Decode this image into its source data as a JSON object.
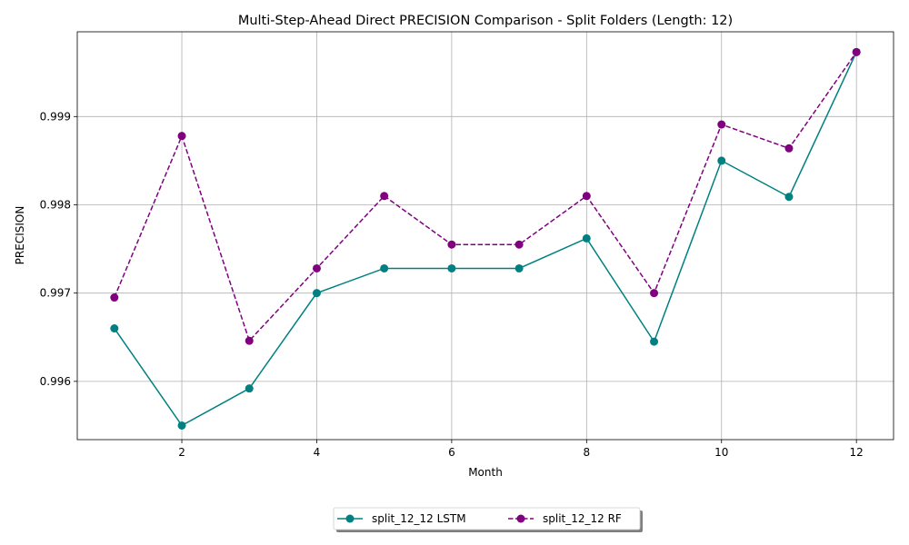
{
  "chart_data": {
    "type": "line",
    "title": "Multi-Step-Ahead Direct PRECISION Comparison - Split Folders (Length: 12)",
    "xlabel": "Month",
    "ylabel": "PRECISION",
    "xlim": [
      0.45,
      12.55
    ],
    "ylim": [
      0.99534,
      0.99996
    ],
    "xticks": [
      2,
      4,
      6,
      8,
      10,
      12
    ],
    "yticks": [
      0.996,
      0.997,
      0.998,
      0.999
    ],
    "grid": true,
    "legend_position": "bottom-center",
    "x": [
      1,
      2,
      3,
      4,
      5,
      6,
      7,
      8,
      9,
      10,
      11,
      12
    ],
    "series": [
      {
        "name": "split_12_12 LSTM",
        "color": "#008080",
        "line_style": "solid",
        "marker": "circle",
        "values": [
          0.9966,
          0.9955,
          0.99592,
          0.997,
          0.99728,
          0.99728,
          0.99728,
          0.99762,
          0.99645,
          0.9985,
          0.99809,
          0.99973
        ]
      },
      {
        "name": "split_12_12 RF",
        "color": "#800080",
        "line_style": "dashed",
        "marker": "circle",
        "values": [
          0.99695,
          0.99878,
          0.99646,
          0.99728,
          0.9981,
          0.99755,
          0.99755,
          0.9981,
          0.997,
          0.99891,
          0.99864,
          0.99973
        ]
      }
    ]
  }
}
